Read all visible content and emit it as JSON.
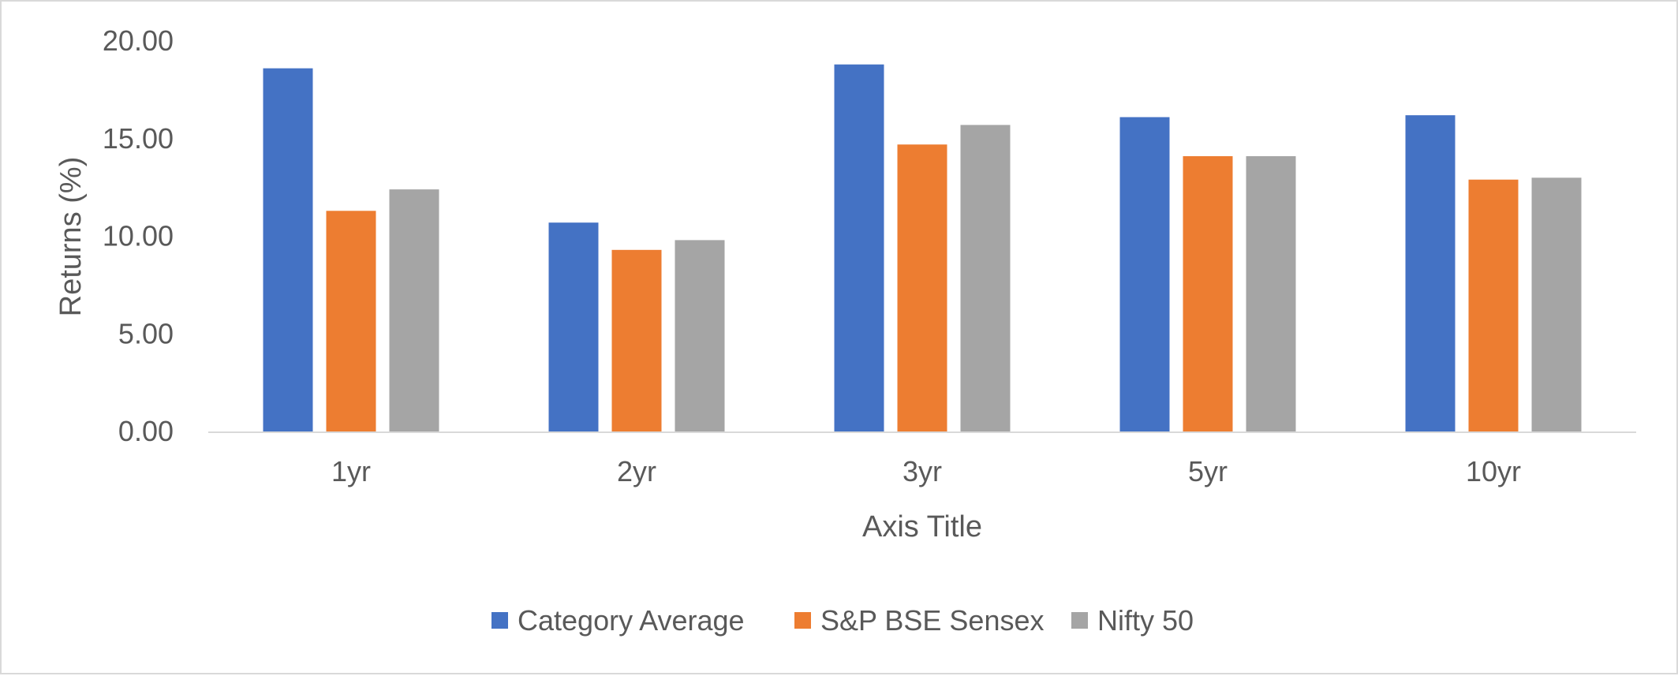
{
  "chart_data": {
    "type": "bar",
    "title": "",
    "xlabel": "Axis Title",
    "ylabel": "Returns (%)",
    "ylim": [
      0,
      20
    ],
    "yticks": [
      "0.00",
      "5.00",
      "10.00",
      "15.00",
      "20.00"
    ],
    "categories": [
      "1yr",
      "2yr",
      "3yr",
      "5yr",
      "10yr"
    ],
    "series": [
      {
        "name": "Category Average",
        "color": "#4472C4",
        "values": [
          18.6,
          10.7,
          18.8,
          16.1,
          16.2
        ]
      },
      {
        "name": "S&P BSE Sensex",
        "color": "#ED7D31",
        "values": [
          11.3,
          9.3,
          14.7,
          14.1,
          12.9
        ]
      },
      {
        "name": "Nifty 50",
        "color": "#A5A5A5",
        "values": [
          12.4,
          9.8,
          15.7,
          14.1,
          13.0
        ]
      }
    ],
    "gridlines": false,
    "legend_position": "bottom",
    "axis_color": "#d9d9d9",
    "text_color": "#595959"
  }
}
